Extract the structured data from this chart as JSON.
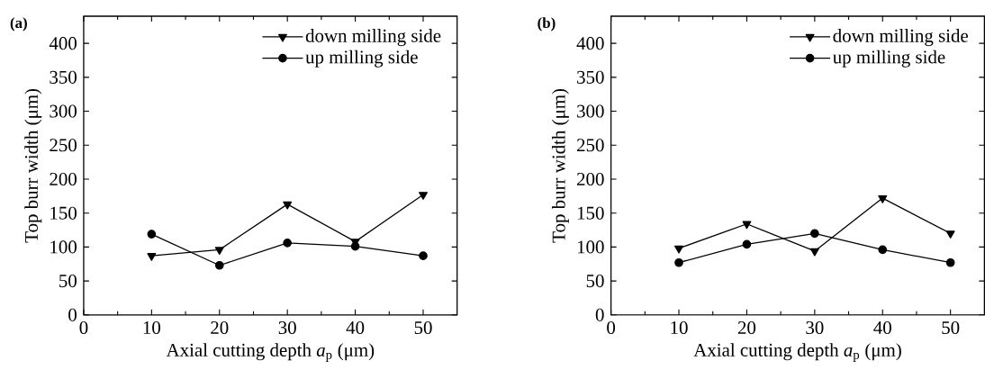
{
  "chart_data": [
    {
      "type": "line",
      "title": "(a)",
      "xlabel": "Axial cutting depth *a*$_{p}$ (μm)",
      "ylabel": "Top burr width (μm)",
      "x": [
        10,
        20,
        30,
        40,
        50
      ],
      "xlim": [
        0,
        55
      ],
      "ylim": [
        0,
        440
      ],
      "xticks": [
        0,
        10,
        20,
        30,
        40,
        50
      ],
      "yticks": [
        0,
        50,
        100,
        150,
        200,
        250,
        300,
        350,
        400
      ],
      "legend": "top right",
      "line_style": "solid",
      "series": [
        {
          "name": "down milling side",
          "color": "#000000",
          "marker": "triangle",
          "values": [
            87,
            96,
            163,
            108,
            177
          ]
        },
        {
          "name": "up milling side",
          "color": "#000000",
          "marker": "circle",
          "values": [
            119,
            73,
            106,
            101,
            87
          ]
        }
      ]
    },
    {
      "type": "line",
      "title": "(b)",
      "xlabel": "Axial cutting depth *a*$_{p}$ (μm)",
      "ylabel": "Top burr width (μm)",
      "x": [
        10,
        20,
        30,
        40,
        50
      ],
      "xlim": [
        0,
        55
      ],
      "ylim": [
        0,
        440
      ],
      "xticks": [
        0,
        10,
        20,
        30,
        40,
        50
      ],
      "yticks": [
        0,
        50,
        100,
        150,
        200,
        250,
        300,
        350,
        400
      ],
      "legend": "top right",
      "line_style": "solid",
      "series": [
        {
          "name": "down milling side",
          "color": "#000000",
          "marker": "triangle",
          "values": [
            98,
            134,
            94,
            172,
            120
          ]
        },
        {
          "name": "up milling side",
          "color": "#000000",
          "marker": "circle",
          "values": [
            77,
            104,
            120,
            96,
            77
          ]
        }
      ]
    }
  ]
}
